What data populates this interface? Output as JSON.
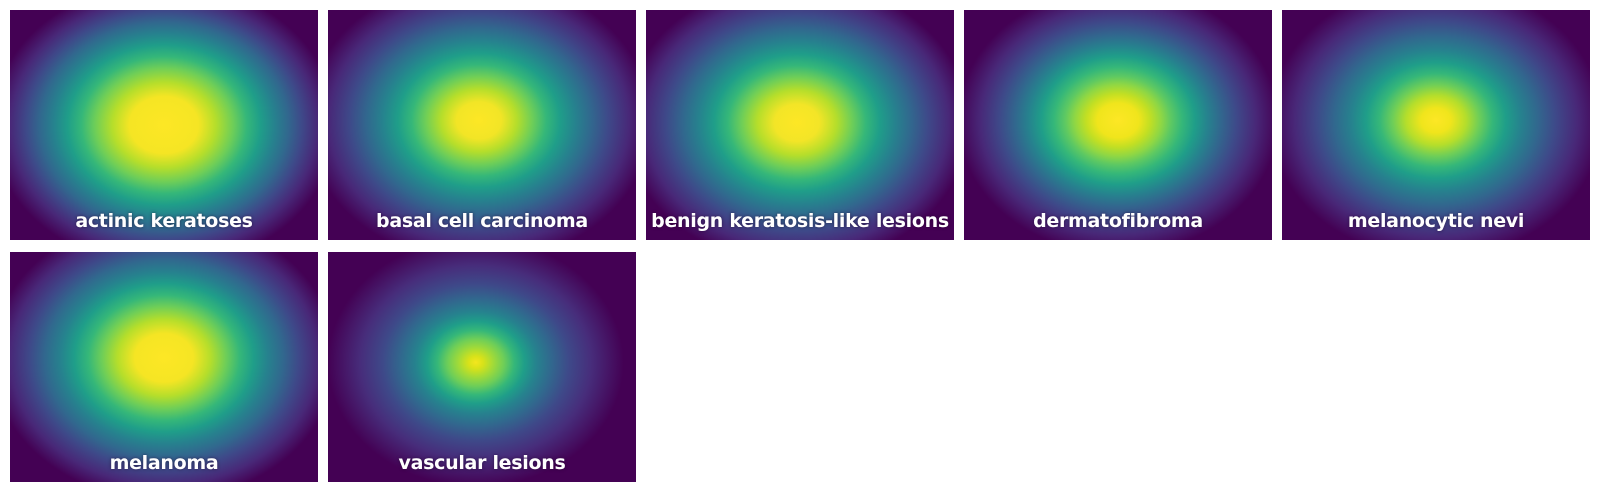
{
  "panels": [
    {
      "label": "actinic keratoses"
    },
    {
      "label": "basal cell carcinoma"
    },
    {
      "label": "benign keratosis-like lesions"
    },
    {
      "label": "dermatofibroma"
    },
    {
      "label": "melanocytic nevi"
    },
    {
      "label": "melanoma"
    },
    {
      "label": "vascular lesions"
    }
  ],
  "colors": {
    "colormap": "viridis",
    "low": "#440154",
    "mid": "#21918c",
    "high": "#fde725",
    "label_text": "#ffffff"
  }
}
